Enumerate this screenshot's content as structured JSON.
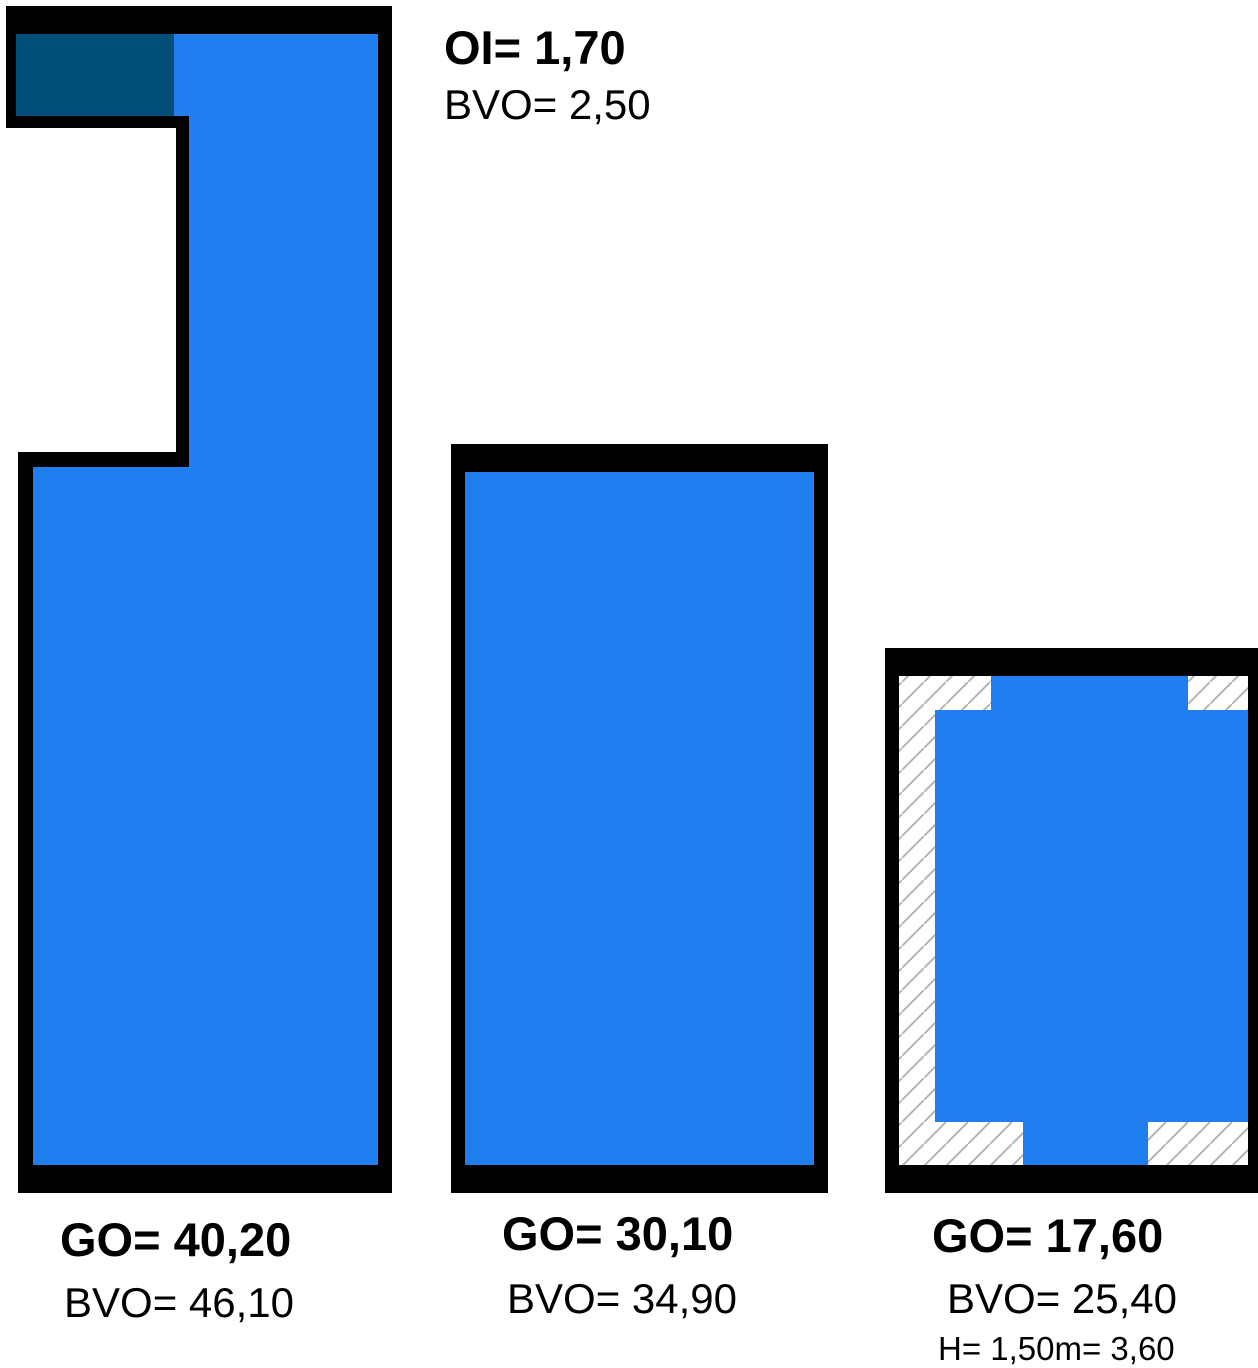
{
  "colors": {
    "fill": "#217ef0",
    "dark_fill": "#024f7a",
    "wall": "#000000",
    "hatch": "#b4b4b4",
    "background": "#ffffff"
  },
  "labels": {
    "room1": {
      "go": "GO= 40,20",
      "bvo": "BVO= 46,10"
    },
    "room2": {
      "go": "GO= 30,10",
      "bvo": "BVO= 34,90"
    },
    "room3": {
      "go": "GO= 17,60",
      "bvo": "BVO= 25,40",
      "h": "H= 1,50m= 3,60"
    },
    "annex": {
      "oi": "OI= 1,70",
      "bvo": "BVO= 2,50"
    }
  }
}
